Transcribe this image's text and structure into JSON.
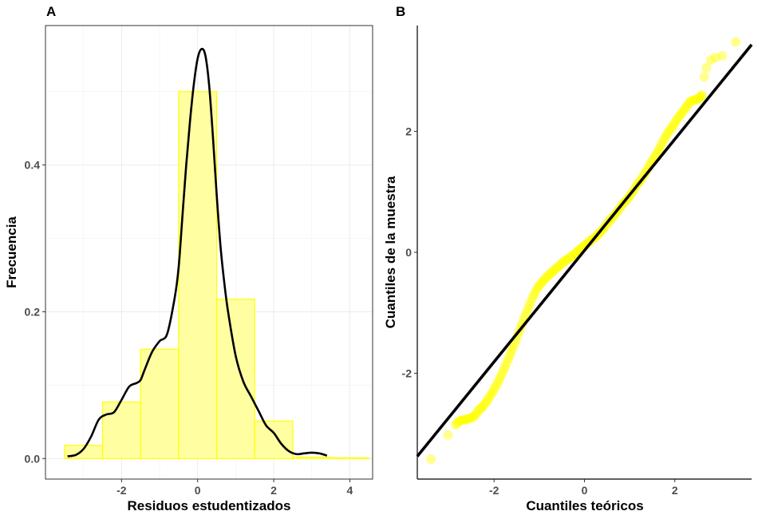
{
  "chart_data": [
    {
      "panel": "A",
      "type": "bar",
      "xlabel": "Residuos estudentizados",
      "ylabel": "Frecuencia",
      "xlim": [
        -4.0,
        4.6
      ],
      "ylim": [
        -0.028,
        0.59
      ],
      "xticks": [
        -2,
        0,
        2,
        4
      ],
      "yticks": [
        0.0,
        0.2,
        0.4
      ],
      "grid": true,
      "colors": {
        "bar_fill": "#ffff99",
        "bar_stroke": "#ffff00",
        "line": "#000000"
      },
      "bins": [
        {
          "x0": -3.5,
          "x1": -2.5,
          "value": 0.018
        },
        {
          "x0": -2.5,
          "x1": -1.5,
          "value": 0.077
        },
        {
          "x0": -1.5,
          "x1": -0.5,
          "value": 0.149
        },
        {
          "x0": -0.5,
          "x1": 0.5,
          "value": 0.5
        },
        {
          "x0": 0.5,
          "x1": 1.5,
          "value": 0.217
        },
        {
          "x0": 1.5,
          "x1": 2.5,
          "value": 0.051
        },
        {
          "x0": 2.5,
          "x1": 3.5,
          "value": 0.002
        },
        {
          "x0": 3.5,
          "x1": 4.5,
          "value": 0.001
        }
      ],
      "density": {
        "x": [
          -3.42,
          -3.2,
          -3.0,
          -2.8,
          -2.6,
          -2.4,
          -2.2,
          -2.0,
          -1.8,
          -1.6,
          -1.5,
          -1.4,
          -1.2,
          -1.0,
          -0.8,
          -0.6,
          -0.5,
          -0.4,
          -0.3,
          -0.2,
          -0.1,
          0.0,
          0.1,
          0.2,
          0.3,
          0.4,
          0.5,
          0.6,
          0.7,
          0.8,
          1.0,
          1.2,
          1.4,
          1.6,
          1.8,
          2.0,
          2.2,
          2.4,
          2.6,
          2.8,
          3.0,
          3.2,
          3.4
        ],
        "y": [
          0.003,
          0.005,
          0.013,
          0.03,
          0.053,
          0.06,
          0.063,
          0.08,
          0.098,
          0.103,
          0.107,
          0.12,
          0.145,
          0.16,
          0.17,
          0.22,
          0.26,
          0.33,
          0.4,
          0.46,
          0.51,
          0.545,
          0.558,
          0.55,
          0.51,
          0.44,
          0.36,
          0.29,
          0.24,
          0.2,
          0.14,
          0.105,
          0.085,
          0.065,
          0.045,
          0.035,
          0.02,
          0.01,
          0.006,
          0.007,
          0.008,
          0.007,
          0.004
        ]
      }
    },
    {
      "panel": "B",
      "type": "scatter",
      "xlabel": "Cuantiles teóricos",
      "ylabel": "Cuantiles de la muestra",
      "xlim": [
        -3.7,
        3.7
      ],
      "ylim": [
        -3.75,
        3.75
      ],
      "xticks": [
        -2,
        0,
        2
      ],
      "yticks": [
        -2,
        0,
        2
      ],
      "grid": false,
      "colors": {
        "point": "#ffff00",
        "line": "#000000"
      },
      "reference_line": {
        "intercept": 0.03,
        "slope": 0.92
      },
      "points": {
        "x": [
          -3.4,
          -3.02,
          -2.85,
          -2.75,
          -2.65,
          -2.55,
          -2.45,
          -2.35,
          -2.25,
          -2.15,
          -2.05,
          -1.95,
          -1.85,
          -1.75,
          -1.65,
          -1.55,
          -1.45,
          -1.35,
          -1.25,
          -1.15,
          -1.05,
          -0.95,
          -0.85,
          -0.75,
          -0.65,
          -0.55,
          -0.45,
          -0.35,
          -0.25,
          -0.15,
          -0.05,
          0.05,
          0.15,
          0.25,
          0.35,
          0.45,
          0.55,
          0.65,
          0.75,
          0.85,
          0.95,
          1.05,
          1.15,
          1.25,
          1.35,
          1.45,
          1.55,
          1.65,
          1.75,
          1.85,
          1.95,
          2.05,
          2.15,
          2.25,
          2.35,
          2.45,
          2.55,
          2.6,
          2.65,
          2.7,
          2.8,
          2.9,
          3.05,
          3.35
        ],
        "y": [
          -3.42,
          -3.02,
          -2.85,
          -2.78,
          -2.77,
          -2.75,
          -2.72,
          -2.62,
          -2.55,
          -2.45,
          -2.33,
          -2.2,
          -2.05,
          -1.88,
          -1.7,
          -1.52,
          -1.32,
          -1.12,
          -0.93,
          -0.75,
          -0.6,
          -0.5,
          -0.42,
          -0.35,
          -0.28,
          -0.22,
          -0.15,
          -0.1,
          -0.05,
          0.02,
          0.08,
          0.14,
          0.2,
          0.26,
          0.33,
          0.42,
          0.52,
          0.6,
          0.7,
          0.8,
          0.88,
          0.98,
          1.1,
          1.2,
          1.32,
          1.45,
          1.57,
          1.7,
          1.85,
          1.98,
          2.08,
          2.2,
          2.3,
          2.4,
          2.5,
          2.52,
          2.55,
          2.6,
          2.9,
          3.05,
          3.18,
          3.22,
          3.25,
          3.48
        ]
      }
    }
  ]
}
